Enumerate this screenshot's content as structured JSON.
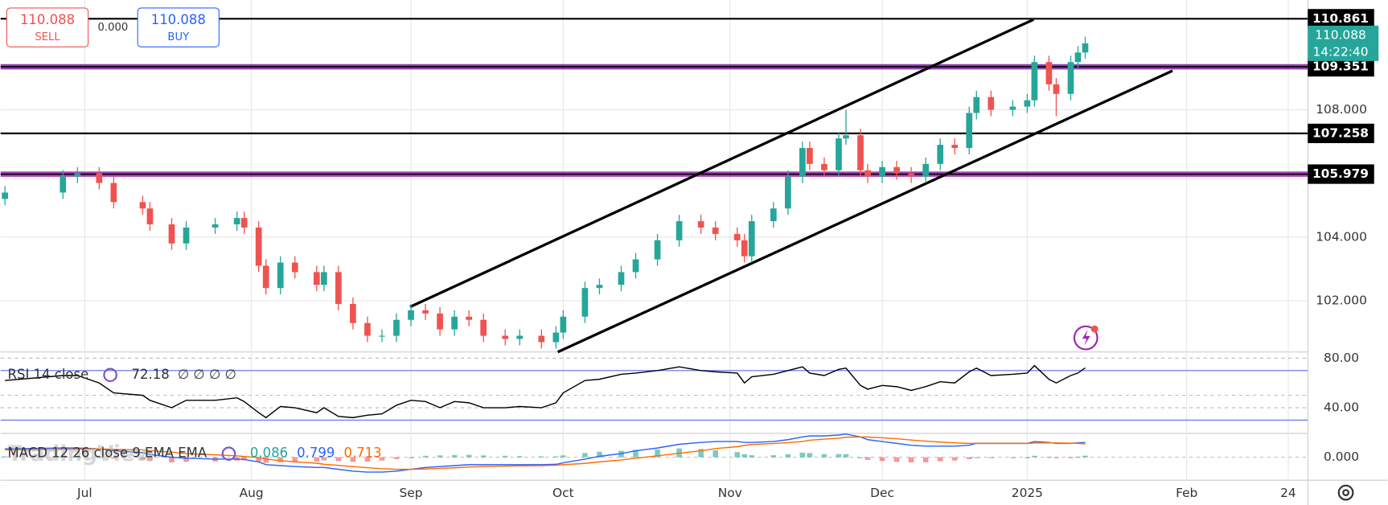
{
  "trade_widget": {
    "sell_price": "110.088",
    "sell_label": "SELL",
    "spread": "0.000",
    "buy_price": "110.088",
    "buy_label": "BUY"
  },
  "watermark": "TradingView",
  "countdown": "14:22:40",
  "chart_data": [
    {
      "type": "candlestick",
      "up_color": "#26a69a",
      "down_color": "#ef5350",
      "x": [
        -11,
        -3,
        -1,
        2,
        4,
        8,
        9,
        12,
        14,
        18,
        21,
        22,
        24,
        25,
        27,
        29,
        32,
        33,
        35,
        37,
        39,
        41,
        43,
        45,
        47,
        49,
        51,
        53,
        55,
        58,
        60,
        63,
        65,
        66,
        69,
        71,
        74,
        76,
        79,
        82,
        85,
        87,
        90,
        91,
        92,
        95,
        97,
        99,
        100,
        102,
        104,
        105,
        107,
        108,
        110,
        112,
        114,
        116,
        118,
        120,
        122,
        123,
        125,
        128,
        130,
        131,
        133,
        134,
        136,
        137,
        138
      ],
      "open": [
        105.2,
        105.4,
        105.9,
        106.0,
        105.7,
        105.1,
        104.9,
        104.4,
        103.8,
        104.3,
        104.4,
        104.6,
        104.3,
        103.1,
        102.4,
        103.2,
        102.9,
        102.5,
        102.9,
        101.9,
        101.3,
        100.9,
        100.9,
        101.4,
        101.7,
        101.6,
        101.1,
        101.5,
        101.4,
        100.9,
        100.8,
        100.9,
        100.7,
        101.0,
        101.5,
        102.4,
        102.5,
        102.9,
        103.3,
        103.9,
        104.5,
        104.3,
        104.1,
        103.9,
        103.4,
        104.5,
        104.9,
        105.9,
        106.8,
        106.3,
        106.1,
        107.1,
        107.2,
        106.1,
        105.9,
        106.2,
        106.0,
        105.9,
        106.3,
        106.9,
        106.8,
        107.9,
        108.4,
        108.0,
        108.1,
        108.3,
        109.5,
        108.8,
        108.5,
        109.5,
        109.8
      ],
      "high": [
        105.6,
        106.1,
        106.2,
        106.2,
        105.9,
        105.3,
        105.1,
        104.6,
        104.5,
        104.6,
        104.8,
        104.8,
        104.5,
        103.3,
        103.4,
        103.4,
        103.1,
        103.1,
        103.1,
        102.1,
        101.5,
        101.1,
        101.6,
        101.9,
        101.9,
        101.8,
        101.7,
        101.7,
        101.6,
        101.1,
        101.1,
        101.1,
        101.2,
        101.7,
        102.6,
        102.7,
        103.1,
        103.5,
        104.1,
        104.7,
        104.7,
        104.5,
        104.3,
        104.1,
        104.7,
        105.1,
        106.1,
        107.0,
        107.0,
        106.5,
        107.3,
        108.0,
        107.4,
        106.3,
        106.4,
        106.4,
        106.2,
        106.5,
        107.1,
        107.1,
        108.1,
        108.6,
        108.6,
        108.3,
        108.5,
        109.7,
        109.7,
        109.0,
        109.7,
        110.0,
        110.3
      ],
      "low": [
        105.0,
        105.2,
        105.7,
        105.5,
        104.9,
        104.7,
        104.2,
        103.6,
        103.6,
        104.1,
        104.2,
        104.1,
        102.9,
        102.2,
        102.2,
        102.7,
        102.3,
        102.3,
        101.7,
        101.1,
        100.7,
        100.7,
        100.7,
        101.2,
        101.4,
        100.9,
        100.9,
        101.2,
        100.7,
        100.6,
        100.6,
        100.5,
        100.5,
        100.8,
        101.3,
        102.2,
        102.3,
        102.7,
        103.1,
        103.7,
        104.1,
        103.9,
        103.7,
        103.2,
        103.2,
        104.3,
        104.7,
        105.7,
        106.1,
        105.9,
        105.9,
        106.9,
        105.9,
        105.7,
        105.7,
        105.8,
        105.7,
        105.7,
        106.1,
        106.6,
        106.6,
        107.7,
        107.8,
        107.8,
        107.9,
        108.1,
        108.6,
        107.8,
        108.3,
        109.3,
        109.6
      ],
      "close": [
        105.4,
        105.9,
        106.0,
        105.7,
        105.1,
        104.9,
        104.4,
        103.8,
        104.3,
        104.4,
        104.6,
        104.3,
        103.1,
        102.4,
        103.2,
        102.9,
        102.5,
        102.9,
        101.9,
        101.3,
        100.9,
        100.9,
        101.4,
        101.7,
        101.6,
        101.1,
        101.5,
        101.4,
        100.9,
        100.8,
        100.9,
        100.7,
        101.0,
        101.5,
        102.4,
        102.5,
        102.9,
        103.3,
        103.9,
        104.5,
        104.3,
        104.1,
        103.9,
        103.4,
        104.5,
        104.9,
        105.9,
        106.8,
        106.3,
        106.1,
        107.1,
        107.2,
        106.1,
        105.9,
        106.2,
        106.0,
        105.9,
        106.3,
        106.9,
        106.8,
        107.9,
        108.4,
        108.0,
        108.1,
        108.3,
        109.5,
        108.8,
        108.5,
        109.5,
        109.8,
        110.088
      ],
      "xlim": [
        -11.6,
        168.7
      ],
      "xticks": [
        {
          "value": 0,
          "label": "Jul"
        },
        {
          "value": 23,
          "label": "Aug"
        },
        {
          "value": 45,
          "label": "Sep"
        },
        {
          "value": 66,
          "label": "Oct"
        },
        {
          "value": 89,
          "label": "Nov"
        },
        {
          "value": 110,
          "label": "Dec"
        },
        {
          "value": 130,
          "label": "2025"
        },
        {
          "value": 152,
          "label": "Feb"
        },
        {
          "value": 166,
          "label": "24"
        }
      ],
      "ylim": [
        100.39,
        111.45
      ],
      "yticks": [
        {
          "value": 102,
          "label": "102.000"
        },
        {
          "value": 104,
          "label": "104.000"
        },
        {
          "value": 108,
          "label": "108.000"
        }
      ],
      "levels": [
        {
          "value": 110.861,
          "color": "#000000"
        },
        {
          "value": 109.351,
          "color": "#7b1fa2"
        },
        {
          "value": 107.258,
          "color": "#000000"
        },
        {
          "value": 105.979,
          "color": "#9c27b0"
        }
      ]
    },
    {
      "type": "line",
      "title": "RSI 14 close",
      "extra": "∅ ∅ ∅ ∅",
      "ylim": [
        19.3,
        85
      ],
      "yticks": [
        {
          "value": 80,
          "label": "80.00"
        },
        {
          "value": 40,
          "label": "40.00"
        }
      ],
      "bands": [
        70,
        50,
        30
      ],
      "series": [
        {
          "name": "RSI",
          "color": "#000000",
          "values": [
            62,
            66,
            66,
            60,
            52,
            50,
            46,
            40,
            46,
            46,
            48,
            45,
            36,
            32,
            41,
            40,
            36,
            40,
            33,
            32,
            34,
            35,
            42,
            46,
            45,
            40,
            45,
            44,
            40,
            40,
            41,
            40,
            44,
            52,
            62,
            63,
            67,
            68,
            70,
            73,
            70,
            69,
            68,
            60,
            65,
            67,
            70,
            73,
            68,
            66,
            71,
            72,
            58,
            55,
            58,
            57,
            54,
            57,
            61,
            60,
            69,
            72,
            66,
            67,
            68,
            74,
            63,
            60,
            66,
            68,
            72.18
          ]
        }
      ]
    },
    {
      "type": "macd",
      "title": "MACD 12 26 close 9 EMA EMA",
      "ylim": [
        -1.24,
        1.29
      ],
      "yticks": [
        {
          "value": 0,
          "label": "0.000"
        }
      ],
      "series": [
        {
          "name": "Histogram",
          "color": "#26a69a",
          "values": [
            0.05,
            0.08,
            0.06,
            0,
            -0.08,
            -0.15,
            -0.2,
            -0.28,
            -0.25,
            -0.23,
            -0.18,
            -0.16,
            -0.23,
            -0.3,
            -0.27,
            -0.25,
            -0.23,
            -0.17,
            -0.21,
            -0.25,
            -0.24,
            -0.18,
            -0.1,
            0,
            0.08,
            0.1,
            0.12,
            0.13,
            0.1,
            0.08,
            0.06,
            0.05,
            0.05,
            0.1,
            0.23,
            0.3,
            0.35,
            0.4,
            0.42,
            0.48,
            0.45,
            0.38,
            0.28,
            0.16,
            0.11,
            0.11,
            0.16,
            0.25,
            0.23,
            0.17,
            0.17,
            0.17,
            0,
            -0.14,
            -0.2,
            -0.25,
            -0.28,
            -0.27,
            -0.22,
            -0.18,
            -0.1,
            0,
            0,
            0,
            0,
            0.08,
            0.02,
            -0.02,
            -0.01,
            0.03,
            0.086
          ]
        },
        {
          "name": "MACD",
          "color": "#2962ff",
          "values": [
            0.45,
            0.5,
            0.5,
            0.45,
            0.35,
            0.25,
            0.15,
            0.0,
            -0.05,
            -0.1,
            -0.1,
            -0.12,
            -0.25,
            -0.4,
            -0.45,
            -0.5,
            -0.55,
            -0.55,
            -0.65,
            -0.75,
            -0.8,
            -0.8,
            -0.75,
            -0.65,
            -0.55,
            -0.5,
            -0.45,
            -0.4,
            -0.4,
            -0.4,
            -0.4,
            -0.4,
            -0.38,
            -0.3,
            -0.1,
            0.05,
            0.2,
            0.35,
            0.5,
            0.7,
            0.8,
            0.85,
            0.85,
            0.8,
            0.8,
            0.85,
            0.95,
            1.1,
            1.15,
            1.15,
            1.2,
            1.25,
            1.1,
            0.95,
            0.85,
            0.75,
            0.65,
            0.6,
            0.6,
            0.6,
            0.65,
            0.75,
            0.75,
            0.75,
            0.75,
            0.85,
            0.8,
            0.75,
            0.75,
            0.78,
            0.799
          ]
        },
        {
          "name": "Signal",
          "color": "#ff6d00",
          "values": [
            0.4,
            0.42,
            0.44,
            0.45,
            0.43,
            0.4,
            0.35,
            0.28,
            0.2,
            0.13,
            0.08,
            0.04,
            -0.02,
            -0.1,
            -0.18,
            -0.25,
            -0.32,
            -0.38,
            -0.44,
            -0.5,
            -0.56,
            -0.62,
            -0.65,
            -0.65,
            -0.63,
            -0.6,
            -0.57,
            -0.53,
            -0.5,
            -0.48,
            -0.46,
            -0.45,
            -0.43,
            -0.4,
            -0.33,
            -0.25,
            -0.15,
            -0.05,
            0.08,
            0.22,
            0.35,
            0.47,
            0.57,
            0.64,
            0.69,
            0.74,
            0.79,
            0.85,
            0.92,
            0.98,
            1.03,
            1.08,
            1.1,
            1.09,
            1.05,
            1.0,
            0.93,
            0.87,
            0.82,
            0.78,
            0.75,
            0.75,
            0.75,
            0.75,
            0.75,
            0.77,
            0.78,
            0.77,
            0.76,
            0.75,
            0.713
          ]
        }
      ]
    }
  ]
}
